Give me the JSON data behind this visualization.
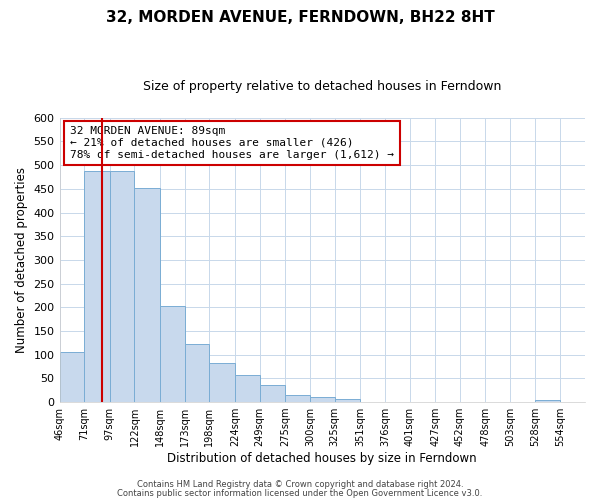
{
  "title": "32, MORDEN AVENUE, FERNDOWN, BH22 8HT",
  "subtitle": "Size of property relative to detached houses in Ferndown",
  "xlabel": "Distribution of detached houses by size in Ferndown",
  "ylabel": "Number of detached properties",
  "bins": [
    46,
    71,
    97,
    122,
    148,
    173,
    198,
    224,
    249,
    275,
    300,
    325,
    351,
    376,
    401,
    427,
    452,
    478,
    503,
    528,
    554
  ],
  "counts": [
    105,
    487,
    487,
    452,
    202,
    122,
    83,
    57,
    36,
    16,
    10,
    6,
    1,
    1,
    0,
    1,
    0,
    0,
    0,
    5
  ],
  "bar_color": "#c8d9ed",
  "bar_edge_color": "#7aadd4",
  "vline_x": 89,
  "vline_color": "#cc0000",
  "annotation_text": "32 MORDEN AVENUE: 89sqm\n← 21% of detached houses are smaller (426)\n78% of semi-detached houses are larger (1,612) →",
  "annotation_box_color": "#ffffff",
  "annotation_box_edge_color": "#cc0000",
  "ylim": [
    0,
    600
  ],
  "yticks": [
    0,
    50,
    100,
    150,
    200,
    250,
    300,
    350,
    400,
    450,
    500,
    550,
    600
  ],
  "footer_line1": "Contains HM Land Registry data © Crown copyright and database right 2024.",
  "footer_line2": "Contains public sector information licensed under the Open Government Licence v3.0.",
  "background_color": "#ffffff",
  "grid_color": "#c8d8ea",
  "title_fontsize": 11,
  "subtitle_fontsize": 9,
  "ylabel_fontsize": 8.5,
  "xlabel_fontsize": 8.5,
  "ytick_fontsize": 8,
  "xtick_fontsize": 7
}
